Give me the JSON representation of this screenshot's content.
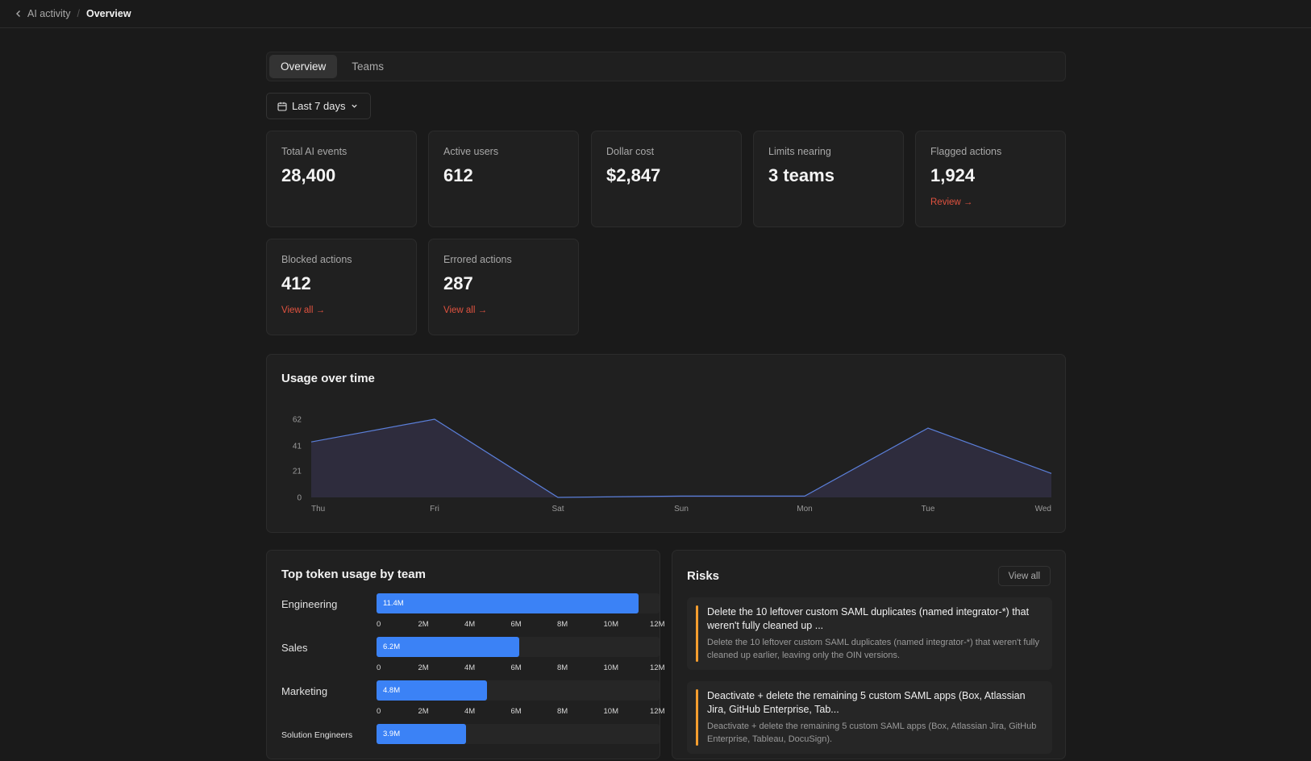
{
  "breadcrumb": {
    "parent": "AI activity",
    "separator": "/",
    "current": "Overview"
  },
  "tabs": [
    {
      "label": "Overview",
      "active": true
    },
    {
      "label": "Teams",
      "active": false
    }
  ],
  "date_range": {
    "label": "Last 7 days"
  },
  "stats": [
    {
      "label": "Total AI events",
      "value": "28,400"
    },
    {
      "label": "Active users",
      "value": "612"
    },
    {
      "label": "Dollar cost",
      "value": "$2,847"
    },
    {
      "label": "Limits nearing",
      "value": "3 teams"
    },
    {
      "label": "Flagged actions",
      "value": "1,924",
      "link": "Review →"
    },
    {
      "label": "Blocked actions",
      "value": "412",
      "link": "View all →"
    },
    {
      "label": "Errored actions",
      "value": "287",
      "link": "View all →"
    }
  ],
  "usage_panel": {
    "title": "Usage over time"
  },
  "chart_data": [
    {
      "type": "area",
      "title": "Usage over time",
      "x": [
        "Thu",
        "Fri",
        "Sat",
        "Sun",
        "Mon",
        "Tue",
        "Wed"
      ],
      "y_ticks": [
        "0",
        "21",
        "41",
        "62"
      ],
      "ylim": [
        0,
        62
      ],
      "series": [
        {
          "values": [
            44,
            62,
            0,
            1,
            1,
            55,
            19
          ]
        }
      ],
      "colors": {
        "line": "#5b7fd9",
        "fill": "#2f2d3f"
      }
    },
    {
      "type": "bar",
      "title": "Top token usage by team",
      "orientation": "horizontal",
      "categories": [
        "Engineering",
        "Sales",
        "Marketing",
        "Solution Engineers"
      ],
      "values": [
        11.4,
        6.2,
        4.8,
        3.9
      ],
      "value_labels": [
        "11.4M",
        "6.2M",
        "4.8M",
        "3.9M"
      ],
      "x_ticks": [
        "0",
        "2M",
        "4M",
        "6M",
        "8M",
        "10M",
        "12M"
      ],
      "xlim": [
        0,
        12.3
      ],
      "color": "#3b82f6"
    }
  ],
  "risks": {
    "title": "Risks",
    "view_all": "View all",
    "items": [
      {
        "title": "Delete the 10 leftover custom SAML duplicates (named integrator-*) that weren't fully cleaned up ...",
        "description": "Delete the 10 leftover custom SAML duplicates (named integrator-*) that weren't fully cleaned up earlier, leaving only the OIN versions."
      },
      {
        "title": "Deactivate + delete the remaining 5 custom SAML apps (Box, Atlassian Jira, GitHub Enterprise, Tab...",
        "description": "Deactivate + delete the remaining 5 custom SAML apps (Box, Atlassian Jira, GitHub Enterprise, Tableau, DocuSign)."
      }
    ]
  },
  "accent_colors": {
    "link_red": "#e0523f",
    "bar_blue": "#3b82f6",
    "risk_orange": "#f59e2f"
  }
}
